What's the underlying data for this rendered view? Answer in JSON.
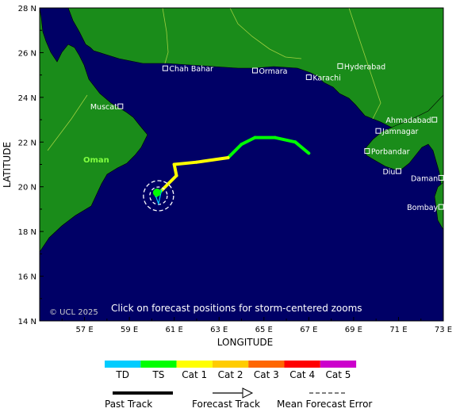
{
  "map": {
    "copyright": "© UCL 2025",
    "instruction": "Click on forecast positions for storm-centered zooms",
    "x_axis_title": "LONGITUDE",
    "y_axis_title": "LATITUDE",
    "lon_ticks": [
      "57 E",
      "59 E",
      "61 E",
      "63 E",
      "65 E",
      "67 E",
      "69 E",
      "71 E",
      "73 E"
    ],
    "lat_ticks": [
      "28 N",
      "26 N",
      "24 N",
      "22 N",
      "20 N",
      "18 N",
      "16 N",
      "14 N"
    ],
    "oman_label": "Oman",
    "cities": [
      {
        "name": "Chah Bahar",
        "lon": 60.6,
        "lat": 25.3
      },
      {
        "name": "Ormara",
        "lon": 64.6,
        "lat": 25.2
      },
      {
        "name": "Karachi",
        "lon": 67.0,
        "lat": 24.9
      },
      {
        "name": "Hyderabad",
        "lon": 68.4,
        "lat": 25.4
      },
      {
        "name": "Muscat",
        "lon": 58.6,
        "lat": 23.6
      },
      {
        "name": "Ahmadabad",
        "lon": 72.6,
        "lat": 23.0
      },
      {
        "name": "Jamnagar",
        "lon": 70.1,
        "lat": 22.5
      },
      {
        "name": "Porbandar",
        "lon": 69.6,
        "lat": 21.6
      },
      {
        "name": "Diu",
        "lon": 71.0,
        "lat": 20.7
      },
      {
        "name": "Daman",
        "lon": 72.9,
        "lat": 20.4
      },
      {
        "name": "Bombay",
        "lon": 72.9,
        "lat": 19.1
      }
    ],
    "track": {
      "points": [
        {
          "lon": 67.0,
          "lat": 21.5,
          "cat": "TS"
        },
        {
          "lon": 66.4,
          "lat": 22.0,
          "cat": "TS"
        },
        {
          "lon": 65.5,
          "lat": 22.2,
          "cat": "TS"
        },
        {
          "lon": 64.6,
          "lat": 22.2,
          "cat": "TS"
        },
        {
          "lon": 64.0,
          "lat": 21.9,
          "cat": "TS"
        },
        {
          "lon": 63.4,
          "lat": 21.3,
          "cat": "Cat 1"
        },
        {
          "lon": 62.0,
          "lat": 21.1,
          "cat": "Cat 1"
        },
        {
          "lon": 61.0,
          "lat": 21.0,
          "cat": "Cat 1"
        },
        {
          "lon": 61.1,
          "lat": 20.5,
          "cat": "Cat 1"
        },
        {
          "lon": 60.4,
          "lat": 19.8,
          "cat": "TS"
        },
        {
          "lon": 60.2,
          "lat": 19.6,
          "cat": "TS"
        }
      ],
      "forecast_center": {
        "lon": 60.3,
        "lat": 19.6
      }
    }
  },
  "legend": {
    "categories": [
      {
        "label": "TD",
        "color": "#00ccff"
      },
      {
        "label": "TS",
        "color": "#00ff00"
      },
      {
        "label": "Cat 1",
        "color": "#ffff00"
      },
      {
        "label": "Cat 2",
        "color": "#ffcc00"
      },
      {
        "label": "Cat 3",
        "color": "#ff6600"
      },
      {
        "label": "Cat 4",
        "color": "#ff0000"
      },
      {
        "label": "Cat 5",
        "color": "#cc00cc"
      }
    ],
    "past_track": "Past Track",
    "forecast_track": "Forecast Track",
    "mean_error": "Mean Forecast Error"
  },
  "colors": {
    "ocean": "#000066",
    "land": "#1a8c1a",
    "border": "#a0d040",
    "copyright": "#cccccc"
  }
}
